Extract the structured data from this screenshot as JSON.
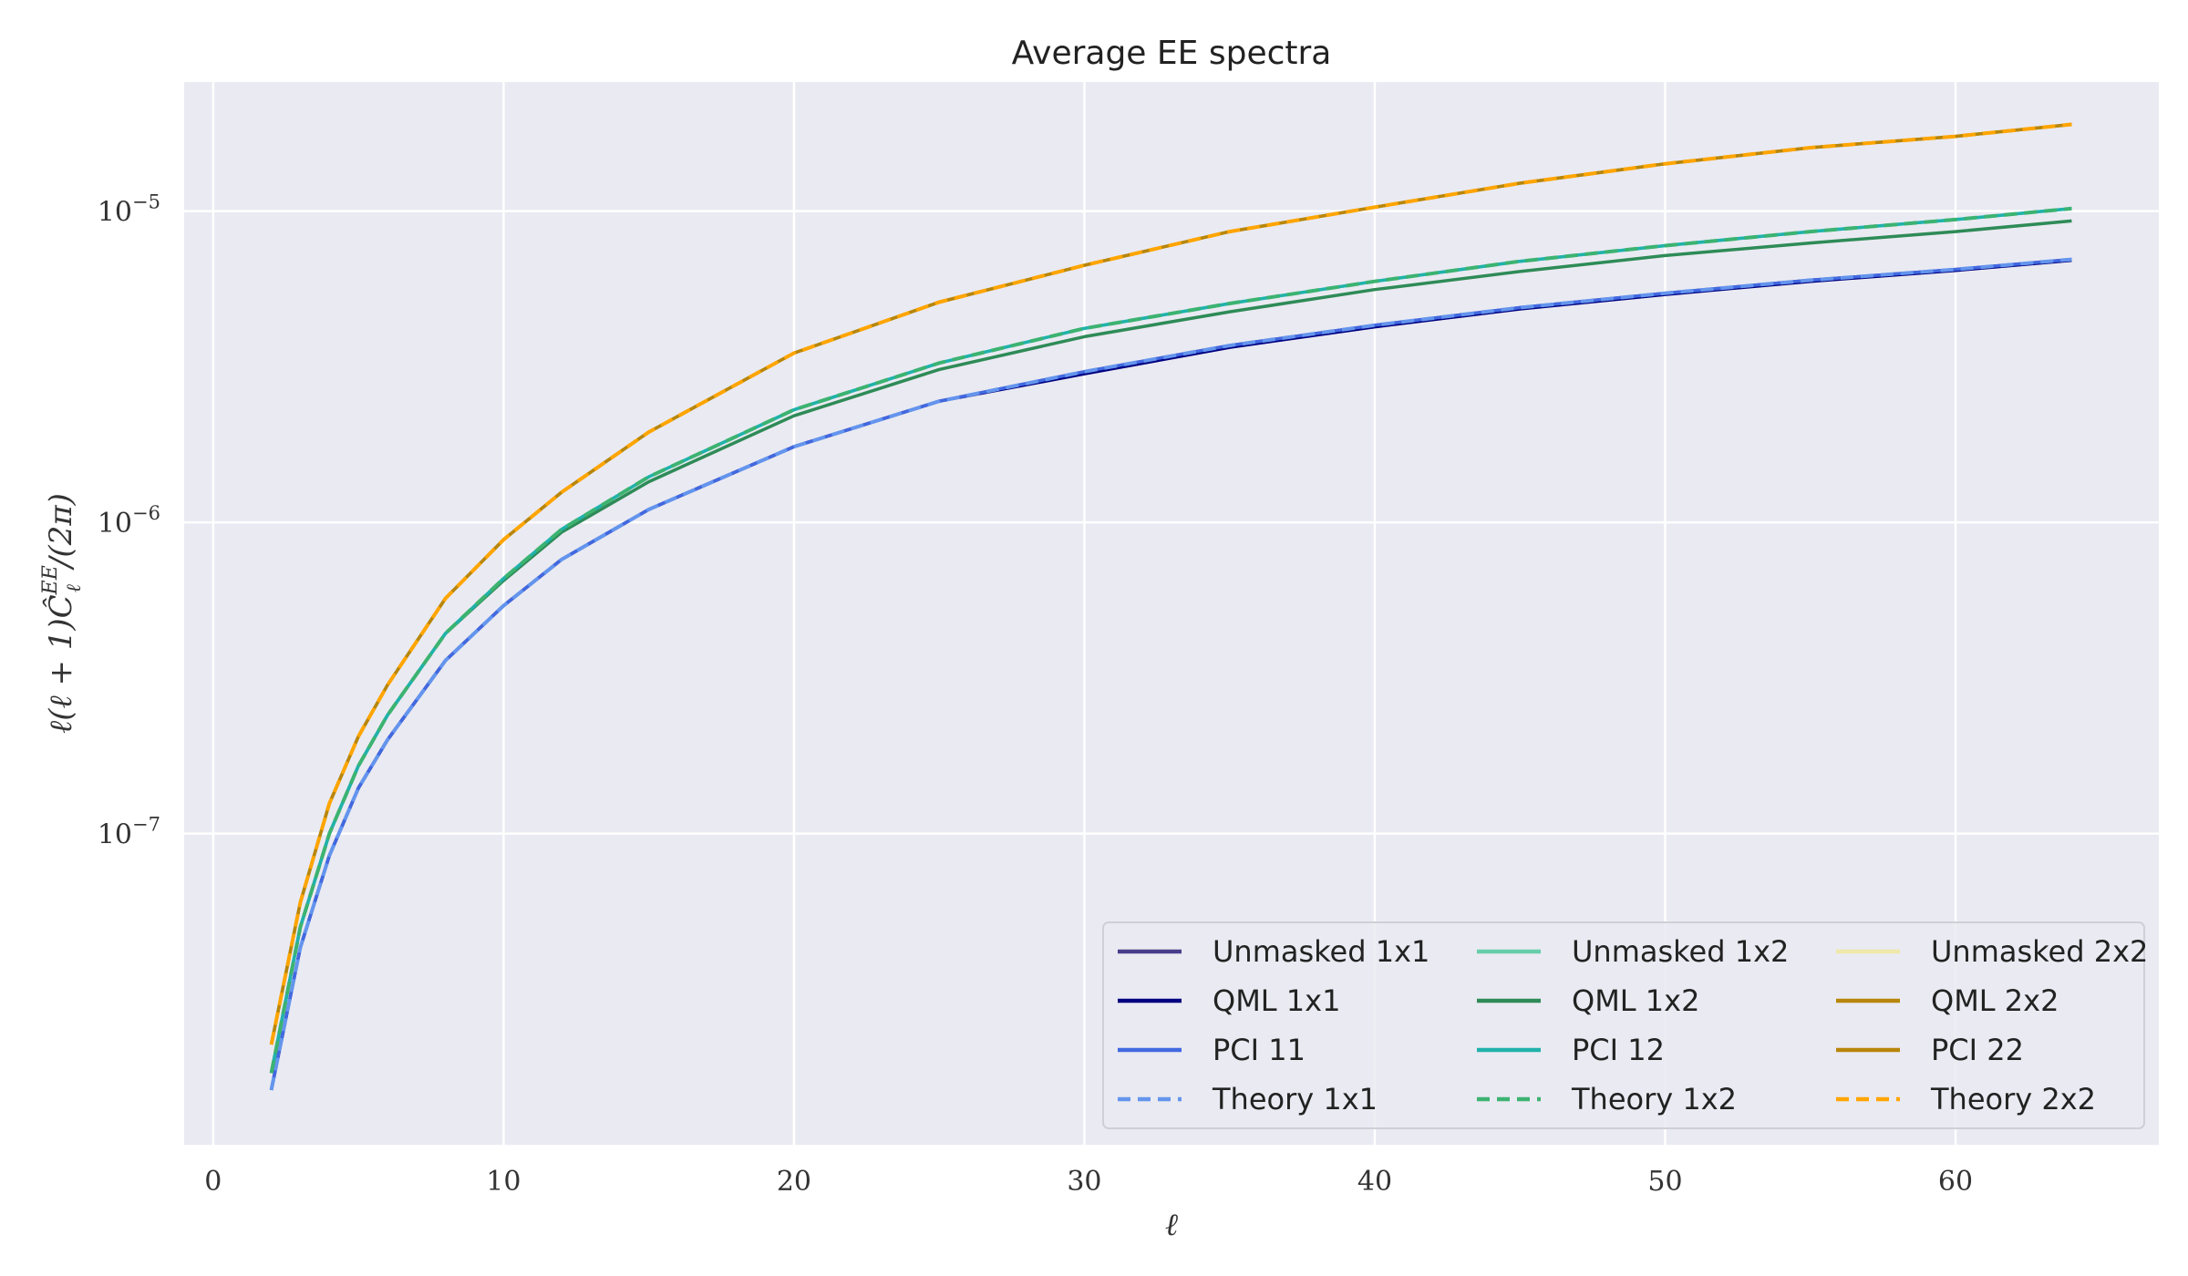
{
  "chart_data": {
    "type": "line",
    "title": "Average EE spectra",
    "xlabel": "ℓ",
    "ylabel": "ℓ(ℓ + 1)Ĉ",
    "ylabel_super": "EE",
    "ylabel_sub": "ℓ",
    "ylabel_tail": "/(2π)",
    "y_scale": "log",
    "xlim": [
      -1,
      67
    ],
    "ylim": [
      1e-08,
      2.6e-05
    ],
    "x_ticks": [
      0,
      10,
      20,
      30,
      40,
      50,
      60
    ],
    "y_ticks": [
      {
        "value": 1e-07,
        "base": "10",
        "exp": "−7"
      },
      {
        "value": 1e-06,
        "base": "10",
        "exp": "−6"
      },
      {
        "value": 1e-05,
        "base": "10",
        "exp": "−5"
      }
    ],
    "grid": true,
    "legend_position": "lower-right",
    "legend_columns": 3,
    "x": [
      2,
      3,
      4,
      5,
      6,
      8,
      10,
      12,
      15,
      20,
      25,
      30,
      35,
      40,
      45,
      50,
      55,
      60,
      64
    ],
    "series": [
      {
        "name": "Unmasked 1x1",
        "color": "#483d8b",
        "dash": false,
        "values": [
          1.5e-08,
          4.3e-08,
          8.5e-08,
          1.4e-07,
          2e-07,
          3.6e-07,
          5.4e-07,
          7.6e-07,
          1.1e-06,
          1.75e-06,
          2.45e-06,
          3.05e-06,
          3.7e-06,
          4.3e-06,
          4.9e-06,
          5.45e-06,
          6e-06,
          6.5e-06,
          7e-06
        ]
      },
      {
        "name": "QML 1x1",
        "color": "#000080",
        "dash": false,
        "values": [
          1.5e-08,
          4.3e-08,
          8.5e-08,
          1.4e-07,
          2e-07,
          3.6e-07,
          5.4e-07,
          7.6e-07,
          1.1e-06,
          1.75e-06,
          2.45e-06,
          3e-06,
          3.65e-06,
          4.25e-06,
          4.85e-06,
          5.4e-06,
          5.95e-06,
          6.45e-06,
          6.95e-06
        ]
      },
      {
        "name": "PCI 11",
        "color": "#4169e1",
        "dash": false,
        "values": [
          1.5e-08,
          4.3e-08,
          8.5e-08,
          1.4e-07,
          2e-07,
          3.6e-07,
          5.4e-07,
          7.6e-07,
          1.1e-06,
          1.75e-06,
          2.45e-06,
          3.05e-06,
          3.7e-06,
          4.3e-06,
          4.9e-06,
          5.45e-06,
          6e-06,
          6.5e-06,
          7e-06
        ]
      },
      {
        "name": "Theory 1x1",
        "color": "#6495ed",
        "dash": true,
        "values": [
          1.5e-08,
          4.3e-08,
          8.5e-08,
          1.4e-07,
          2e-07,
          3.6e-07,
          5.4e-07,
          7.6e-07,
          1.1e-06,
          1.75e-06,
          2.45e-06,
          3.05e-06,
          3.7e-06,
          4.3e-06,
          4.9e-06,
          5.45e-06,
          6e-06,
          6.5e-06,
          7e-06
        ]
      },
      {
        "name": "Unmasked 1x2",
        "color": "#66cdaa",
        "dash": false,
        "values": [
          1.7e-08,
          5e-08,
          1e-07,
          1.65e-07,
          2.4e-07,
          4.4e-07,
          6.6e-07,
          9.5e-07,
          1.4e-06,
          2.3e-06,
          3.25e-06,
          4.2e-06,
          5.05e-06,
          5.95e-06,
          6.9e-06,
          7.75e-06,
          8.6e-06,
          9.4e-06,
          1.02e-05
        ]
      },
      {
        "name": "QML 1x2",
        "color": "#2e8b57",
        "dash": false,
        "values": [
          1.7e-08,
          5e-08,
          1e-07,
          1.65e-07,
          2.4e-07,
          4.4e-07,
          6.5e-07,
          9.3e-07,
          1.35e-06,
          2.2e-06,
          3.1e-06,
          3.95e-06,
          4.75e-06,
          5.6e-06,
          6.4e-06,
          7.2e-06,
          7.9e-06,
          8.6e-06,
          9.3e-06
        ]
      },
      {
        "name": "PCI 12",
        "color": "#20b2aa",
        "dash": false,
        "values": [
          1.7e-08,
          5e-08,
          1e-07,
          1.65e-07,
          2.4e-07,
          4.4e-07,
          6.6e-07,
          9.5e-07,
          1.4e-06,
          2.3e-06,
          3.25e-06,
          4.2e-06,
          5.05e-06,
          5.95e-06,
          6.9e-06,
          7.75e-06,
          8.6e-06,
          9.4e-06,
          1.02e-05
        ]
      },
      {
        "name": "Theory 1x2",
        "color": "#3cb371",
        "dash": true,
        "values": [
          1.7e-08,
          5e-08,
          1e-07,
          1.65e-07,
          2.4e-07,
          4.4e-07,
          6.6e-07,
          9.5e-07,
          1.4e-06,
          2.3e-06,
          3.25e-06,
          4.2e-06,
          5.05e-06,
          5.95e-06,
          6.9e-06,
          7.75e-06,
          8.6e-06,
          9.4e-06,
          1.02e-05
        ]
      },
      {
        "name": "Unmasked 2x2",
        "color": "#eee8aa",
        "dash": false,
        "values": [
          2.1e-08,
          6e-08,
          1.25e-07,
          2.05e-07,
          3e-07,
          5.7e-07,
          8.8e-07,
          1.25e-06,
          1.95e-06,
          3.5e-06,
          5.1e-06,
          6.7e-06,
          8.6e-06,
          1.03e-05,
          1.23e-05,
          1.42e-05,
          1.6e-05,
          1.74e-05,
          1.9e-05
        ]
      },
      {
        "name": "QML 2x2",
        "color": "#b8860b",
        "dash": false,
        "values": [
          2.1e-08,
          6e-08,
          1.25e-07,
          2.05e-07,
          3e-07,
          5.7e-07,
          8.8e-07,
          1.25e-06,
          1.95e-06,
          3.5e-06,
          5.1e-06,
          6.7e-06,
          8.6e-06,
          1.03e-05,
          1.23e-05,
          1.42e-05,
          1.6e-05,
          1.74e-05,
          1.9e-05
        ]
      },
      {
        "name": "PCI 22",
        "color": "#b8860b",
        "dash": false,
        "values": [
          2.1e-08,
          6e-08,
          1.25e-07,
          2.05e-07,
          3e-07,
          5.7e-07,
          8.8e-07,
          1.25e-06,
          1.95e-06,
          3.5e-06,
          5.1e-06,
          6.7e-06,
          8.6e-06,
          1.03e-05,
          1.23e-05,
          1.42e-05,
          1.6e-05,
          1.74e-05,
          1.9e-05
        ]
      },
      {
        "name": "Theory 2x2",
        "color": "#ffa500",
        "dash": true,
        "values": [
          2.1e-08,
          6e-08,
          1.25e-07,
          2.05e-07,
          3e-07,
          5.7e-07,
          8.8e-07,
          1.25e-06,
          1.95e-06,
          3.5e-06,
          5.1e-06,
          6.7e-06,
          8.6e-06,
          1.03e-05,
          1.23e-05,
          1.42e-05,
          1.6e-05,
          1.74e-05,
          1.9e-05
        ]
      }
    ]
  }
}
